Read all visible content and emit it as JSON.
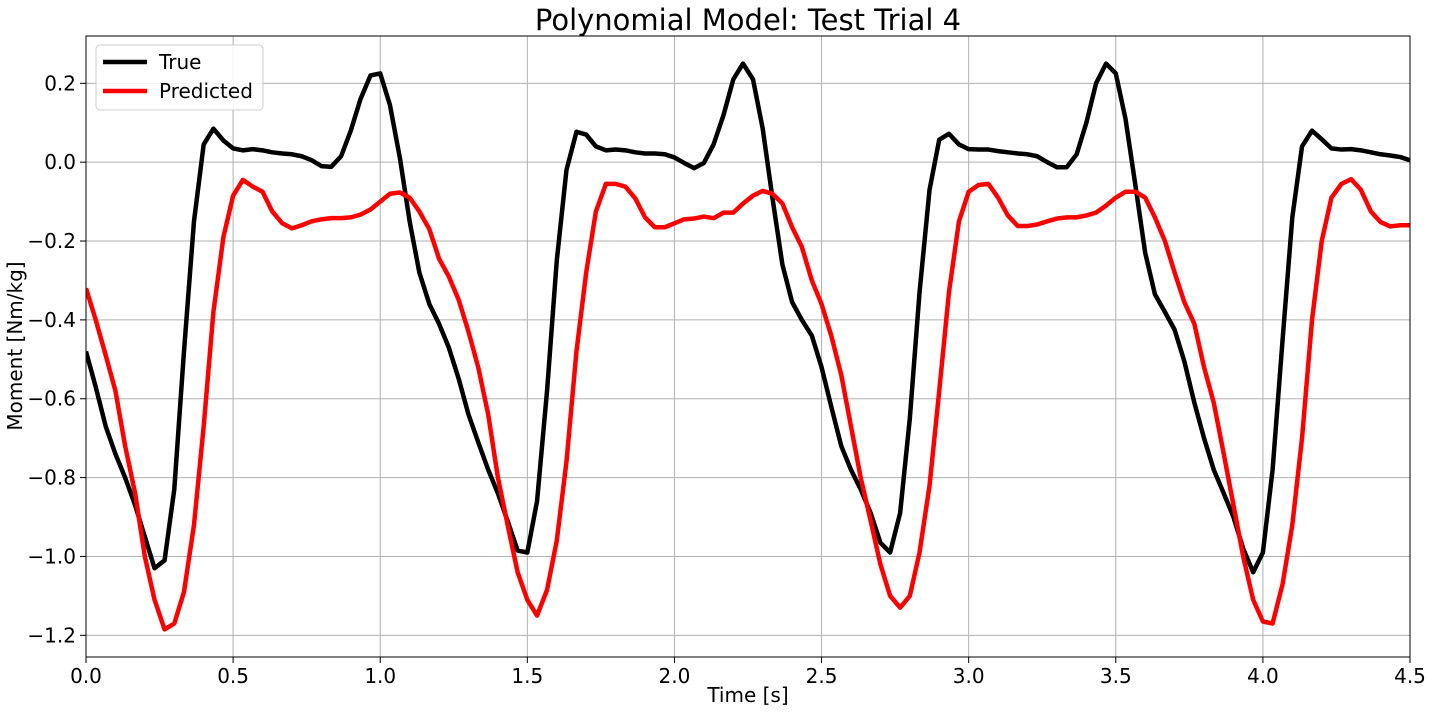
{
  "chart_data": {
    "type": "line",
    "title": "Polynomial Model: Test Trial 4",
    "xlabel": "Time [s]",
    "ylabel": "Moment [Nm/kg]",
    "xlim": [
      0.0,
      4.5
    ],
    "ylim": [
      -1.255,
      0.32
    ],
    "xticks": [
      0.0,
      0.5,
      1.0,
      1.5,
      2.0,
      2.5,
      3.0,
      3.5,
      4.0,
      4.5
    ],
    "xtick_labels": [
      "0.0",
      "0.5",
      "1.0",
      "1.5",
      "2.0",
      "2.5",
      "3.0",
      "3.5",
      "4.0",
      "4.5"
    ],
    "yticks": [
      0.2,
      0.0,
      -0.2,
      -0.4,
      -0.6,
      -0.8,
      -1.0,
      -1.2
    ],
    "ytick_labels": [
      "0.2",
      "0.0",
      "−0.2",
      "−0.4",
      "−0.6",
      "−0.8",
      "−1.0",
      "−1.2"
    ],
    "grid": true,
    "legend_position": "top-left",
    "series": [
      {
        "name": "True",
        "color": "#000000",
        "points": [
          [
            0.0,
            -0.48
          ],
          [
            0.033,
            -0.57
          ],
          [
            0.067,
            -0.67
          ],
          [
            0.1,
            -0.74
          ],
          [
            0.133,
            -0.8
          ],
          [
            0.167,
            -0.87
          ],
          [
            0.2,
            -0.95
          ],
          [
            0.233,
            -1.03
          ],
          [
            0.267,
            -1.01
          ],
          [
            0.3,
            -0.83
          ],
          [
            0.333,
            -0.48
          ],
          [
            0.367,
            -0.15
          ],
          [
            0.4,
            0.045
          ],
          [
            0.433,
            0.085
          ],
          [
            0.467,
            0.055
          ],
          [
            0.5,
            0.035
          ],
          [
            0.533,
            0.03
          ],
          [
            0.567,
            0.033
          ],
          [
            0.6,
            0.03
          ],
          [
            0.633,
            0.025
          ],
          [
            0.667,
            0.022
          ],
          [
            0.7,
            0.02
          ],
          [
            0.733,
            0.015
          ],
          [
            0.767,
            0.005
          ],
          [
            0.8,
            -0.01
          ],
          [
            0.833,
            -0.012
          ],
          [
            0.867,
            0.015
          ],
          [
            0.9,
            0.08
          ],
          [
            0.933,
            0.16
          ],
          [
            0.967,
            0.22
          ],
          [
            1.0,
            0.225
          ],
          [
            1.033,
            0.145
          ],
          [
            1.067,
            0.01
          ],
          [
            1.1,
            -0.15
          ],
          [
            1.133,
            -0.28
          ],
          [
            1.167,
            -0.36
          ],
          [
            1.2,
            -0.41
          ],
          [
            1.233,
            -0.47
          ],
          [
            1.267,
            -0.55
          ],
          [
            1.3,
            -0.64
          ],
          [
            1.333,
            -0.71
          ],
          [
            1.367,
            -0.78
          ],
          [
            1.4,
            -0.84
          ],
          [
            1.433,
            -0.91
          ],
          [
            1.467,
            -0.985
          ],
          [
            1.5,
            -0.99
          ],
          [
            1.533,
            -0.86
          ],
          [
            1.567,
            -0.58
          ],
          [
            1.6,
            -0.25
          ],
          [
            1.633,
            -0.02
          ],
          [
            1.667,
            0.077
          ],
          [
            1.7,
            0.07
          ],
          [
            1.733,
            0.04
          ],
          [
            1.767,
            0.03
          ],
          [
            1.8,
            0.032
          ],
          [
            1.833,
            0.03
          ],
          [
            1.867,
            0.025
          ],
          [
            1.9,
            0.022
          ],
          [
            1.933,
            0.022
          ],
          [
            1.967,
            0.02
          ],
          [
            2.0,
            0.012
          ],
          [
            2.033,
            -0.002
          ],
          [
            2.067,
            -0.015
          ],
          [
            2.1,
            -0.002
          ],
          [
            2.133,
            0.045
          ],
          [
            2.167,
            0.12
          ],
          [
            2.2,
            0.21
          ],
          [
            2.233,
            0.25
          ],
          [
            2.267,
            0.21
          ],
          [
            2.3,
            0.085
          ],
          [
            2.333,
            -0.09
          ],
          [
            2.367,
            -0.26
          ],
          [
            2.4,
            -0.355
          ],
          [
            2.433,
            -0.4
          ],
          [
            2.467,
            -0.44
          ],
          [
            2.5,
            -0.52
          ],
          [
            2.533,
            -0.62
          ],
          [
            2.567,
            -0.72
          ],
          [
            2.6,
            -0.78
          ],
          [
            2.633,
            -0.83
          ],
          [
            2.667,
            -0.89
          ],
          [
            2.7,
            -0.965
          ],
          [
            2.733,
            -0.99
          ],
          [
            2.767,
            -0.89
          ],
          [
            2.8,
            -0.65
          ],
          [
            2.833,
            -0.33
          ],
          [
            2.867,
            -0.07
          ],
          [
            2.9,
            0.057
          ],
          [
            2.933,
            0.072
          ],
          [
            2.967,
            0.045
          ],
          [
            3.0,
            0.033
          ],
          [
            3.033,
            0.032
          ],
          [
            3.067,
            0.032
          ],
          [
            3.1,
            0.028
          ],
          [
            3.133,
            0.025
          ],
          [
            3.167,
            0.022
          ],
          [
            3.2,
            0.02
          ],
          [
            3.233,
            0.015
          ],
          [
            3.267,
            0.0
          ],
          [
            3.3,
            -0.013
          ],
          [
            3.333,
            -0.013
          ],
          [
            3.367,
            0.02
          ],
          [
            3.4,
            0.1
          ],
          [
            3.433,
            0.2
          ],
          [
            3.467,
            0.25
          ],
          [
            3.5,
            0.225
          ],
          [
            3.533,
            0.11
          ],
          [
            3.567,
            -0.06
          ],
          [
            3.6,
            -0.23
          ],
          [
            3.633,
            -0.335
          ],
          [
            3.667,
            -0.38
          ],
          [
            3.7,
            -0.425
          ],
          [
            3.733,
            -0.505
          ],
          [
            3.767,
            -0.61
          ],
          [
            3.8,
            -0.7
          ],
          [
            3.833,
            -0.78
          ],
          [
            3.867,
            -0.84
          ],
          [
            3.9,
            -0.9
          ],
          [
            3.933,
            -0.98
          ],
          [
            3.967,
            -1.04
          ],
          [
            4.0,
            -0.99
          ],
          [
            4.033,
            -0.78
          ],
          [
            4.067,
            -0.45
          ],
          [
            4.1,
            -0.14
          ],
          [
            4.133,
            0.04
          ],
          [
            4.167,
            0.08
          ],
          [
            4.2,
            0.058
          ],
          [
            4.233,
            0.035
          ],
          [
            4.267,
            0.032
          ],
          [
            4.3,
            0.033
          ],
          [
            4.333,
            0.03
          ],
          [
            4.367,
            0.025
          ],
          [
            4.4,
            0.02
          ],
          [
            4.433,
            0.017
          ],
          [
            4.467,
            0.013
          ],
          [
            4.5,
            0.005
          ]
        ]
      },
      {
        "name": "Predicted",
        "color": "#ff0000",
        "points": [
          [
            0.0,
            -0.32
          ],
          [
            0.033,
            -0.4
          ],
          [
            0.067,
            -0.49
          ],
          [
            0.1,
            -0.58
          ],
          [
            0.133,
            -0.72
          ],
          [
            0.167,
            -0.84
          ],
          [
            0.2,
            -1.0
          ],
          [
            0.233,
            -1.11
          ],
          [
            0.267,
            -1.185
          ],
          [
            0.3,
            -1.17
          ],
          [
            0.333,
            -1.09
          ],
          [
            0.367,
            -0.92
          ],
          [
            0.4,
            -0.67
          ],
          [
            0.433,
            -0.38
          ],
          [
            0.467,
            -0.19
          ],
          [
            0.5,
            -0.085
          ],
          [
            0.533,
            -0.045
          ],
          [
            0.567,
            -0.062
          ],
          [
            0.6,
            -0.075
          ],
          [
            0.633,
            -0.125
          ],
          [
            0.667,
            -0.155
          ],
          [
            0.7,
            -0.168
          ],
          [
            0.733,
            -0.16
          ],
          [
            0.767,
            -0.15
          ],
          [
            0.8,
            -0.145
          ],
          [
            0.833,
            -0.142
          ],
          [
            0.867,
            -0.142
          ],
          [
            0.9,
            -0.14
          ],
          [
            0.933,
            -0.133
          ],
          [
            0.967,
            -0.12
          ],
          [
            1.0,
            -0.1
          ],
          [
            1.033,
            -0.08
          ],
          [
            1.067,
            -0.077
          ],
          [
            1.1,
            -0.09
          ],
          [
            1.133,
            -0.125
          ],
          [
            1.167,
            -0.17
          ],
          [
            1.2,
            -0.245
          ],
          [
            1.233,
            -0.29
          ],
          [
            1.267,
            -0.35
          ],
          [
            1.3,
            -0.43
          ],
          [
            1.333,
            -0.52
          ],
          [
            1.367,
            -0.64
          ],
          [
            1.4,
            -0.8
          ],
          [
            1.433,
            -0.92
          ],
          [
            1.467,
            -1.04
          ],
          [
            1.5,
            -1.11
          ],
          [
            1.533,
            -1.15
          ],
          [
            1.567,
            -1.085
          ],
          [
            1.6,
            -0.96
          ],
          [
            1.633,
            -0.76
          ],
          [
            1.667,
            -0.48
          ],
          [
            1.7,
            -0.28
          ],
          [
            1.733,
            -0.125
          ],
          [
            1.767,
            -0.055
          ],
          [
            1.8,
            -0.055
          ],
          [
            1.833,
            -0.062
          ],
          [
            1.867,
            -0.092
          ],
          [
            1.9,
            -0.14
          ],
          [
            1.933,
            -0.165
          ],
          [
            1.967,
            -0.165
          ],
          [
            2.0,
            -0.155
          ],
          [
            2.033,
            -0.145
          ],
          [
            2.067,
            -0.143
          ],
          [
            2.1,
            -0.138
          ],
          [
            2.133,
            -0.142
          ],
          [
            2.167,
            -0.128
          ],
          [
            2.2,
            -0.128
          ],
          [
            2.233,
            -0.105
          ],
          [
            2.267,
            -0.085
          ],
          [
            2.3,
            -0.073
          ],
          [
            2.333,
            -0.08
          ],
          [
            2.367,
            -0.105
          ],
          [
            2.4,
            -0.165
          ],
          [
            2.433,
            -0.215
          ],
          [
            2.467,
            -0.3
          ],
          [
            2.5,
            -0.36
          ],
          [
            2.533,
            -0.44
          ],
          [
            2.567,
            -0.54
          ],
          [
            2.6,
            -0.67
          ],
          [
            2.633,
            -0.8
          ],
          [
            2.667,
            -0.91
          ],
          [
            2.7,
            -1.02
          ],
          [
            2.733,
            -1.1
          ],
          [
            2.767,
            -1.13
          ],
          [
            2.8,
            -1.1
          ],
          [
            2.833,
            -0.99
          ],
          [
            2.867,
            -0.82
          ],
          [
            2.9,
            -0.58
          ],
          [
            2.933,
            -0.33
          ],
          [
            2.967,
            -0.15
          ],
          [
            3.0,
            -0.075
          ],
          [
            3.033,
            -0.058
          ],
          [
            3.067,
            -0.055
          ],
          [
            3.1,
            -0.09
          ],
          [
            3.133,
            -0.135
          ],
          [
            3.167,
            -0.162
          ],
          [
            3.2,
            -0.162
          ],
          [
            3.233,
            -0.158
          ],
          [
            3.267,
            -0.15
          ],
          [
            3.3,
            -0.143
          ],
          [
            3.333,
            -0.14
          ],
          [
            3.367,
            -0.14
          ],
          [
            3.4,
            -0.135
          ],
          [
            3.433,
            -0.128
          ],
          [
            3.467,
            -0.11
          ],
          [
            3.5,
            -0.09
          ],
          [
            3.533,
            -0.075
          ],
          [
            3.567,
            -0.075
          ],
          [
            3.6,
            -0.09
          ],
          [
            3.633,
            -0.14
          ],
          [
            3.667,
            -0.2
          ],
          [
            3.7,
            -0.28
          ],
          [
            3.733,
            -0.355
          ],
          [
            3.767,
            -0.41
          ],
          [
            3.8,
            -0.52
          ],
          [
            3.833,
            -0.61
          ],
          [
            3.867,
            -0.74
          ],
          [
            3.9,
            -0.87
          ],
          [
            3.933,
            -1.0
          ],
          [
            3.967,
            -1.11
          ],
          [
            4.0,
            -1.165
          ],
          [
            4.033,
            -1.17
          ],
          [
            4.067,
            -1.07
          ],
          [
            4.1,
            -0.92
          ],
          [
            4.133,
            -0.7
          ],
          [
            4.167,
            -0.4
          ],
          [
            4.2,
            -0.2
          ],
          [
            4.233,
            -0.09
          ],
          [
            4.267,
            -0.055
          ],
          [
            4.3,
            -0.043
          ],
          [
            4.333,
            -0.07
          ],
          [
            4.367,
            -0.125
          ],
          [
            4.4,
            -0.152
          ],
          [
            4.433,
            -0.163
          ],
          [
            4.467,
            -0.16
          ],
          [
            4.5,
            -0.16
          ]
        ]
      }
    ]
  }
}
